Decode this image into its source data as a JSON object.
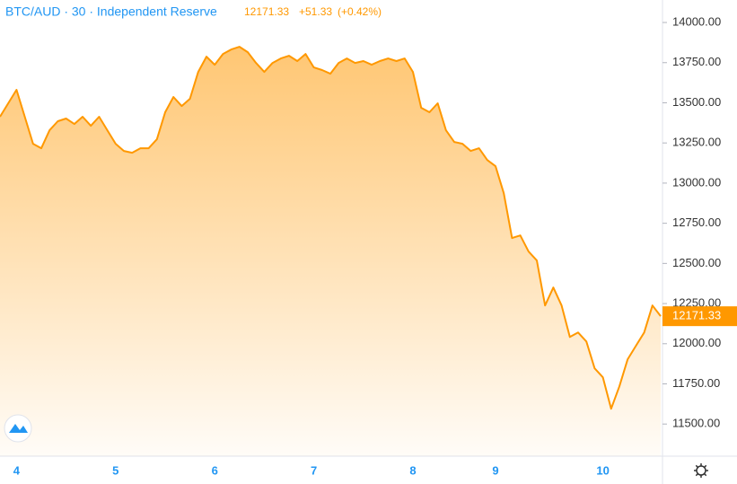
{
  "chart_data": {
    "type": "area",
    "title": "BTC/AUD · 30 · Independent Reserve",
    "change": "+51.33",
    "change_percent": "(+0.42%)",
    "color": "#ff9800",
    "categories": [
      null,
      null,
      "4",
      null,
      null,
      null,
      null,
      null,
      null,
      null,
      null,
      null,
      null,
      null,
      "5",
      null,
      null,
      null,
      null,
      null,
      null,
      null,
      null,
      null,
      null,
      null,
      "6",
      null,
      null,
      null,
      null,
      null,
      null,
      null,
      null,
      null,
      null,
      null,
      "7",
      null,
      null,
      null,
      null,
      null,
      null,
      null,
      null,
      null,
      null,
      null,
      "8",
      null,
      null,
      null,
      null,
      null,
      null,
      null,
      null,
      null,
      "9",
      null,
      null,
      null,
      null,
      null,
      null,
      null,
      null,
      null,
      null,
      null,
      null,
      "10",
      null,
      null,
      null,
      null,
      null,
      null,
      null
    ],
    "values": [
      13413,
      13497,
      13581,
      13413,
      13245,
      13217,
      13329,
      13385,
      13402,
      13368,
      13413,
      13357,
      13413,
      13329,
      13245,
      13200,
      13189,
      13217,
      13217,
      13273,
      13441,
      13536,
      13480,
      13525,
      13692,
      13787,
      13737,
      13804,
      13832,
      13849,
      13815,
      13748,
      13692,
      13748,
      13776,
      13793,
      13760,
      13804,
      13720,
      13704,
      13681,
      13748,
      13776,
      13748,
      13760,
      13737,
      13760,
      13776,
      13760,
      13776,
      13692,
      13469,
      13441,
      13497,
      13329,
      13256,
      13245,
      13200,
      13217,
      13144,
      13105,
      12937,
      12658,
      12674,
      12574,
      12518,
      12238,
      12350,
      12238,
      12042,
      12070,
      12014,
      11847,
      11791,
      11595,
      11735,
      11903,
      11987,
      12070,
      12238,
      12171.33
    ],
    "ylim": [
      11300,
      14140
    ],
    "yticks": [
      {
        "value": 11500,
        "label": "11500.00"
      },
      {
        "value": 11750,
        "label": "11750.00"
      },
      {
        "value": 12000,
        "label": "12000.00"
      },
      {
        "value": 12250,
        "label": "12250.00"
      },
      {
        "value": 12500,
        "label": "12500.00"
      },
      {
        "value": 12750,
        "label": "12750.00"
      },
      {
        "value": 13000,
        "label": "13000.00"
      },
      {
        "value": 13250,
        "label": "13250.00"
      },
      {
        "value": 13500,
        "label": "13500.00"
      },
      {
        "value": 13750,
        "label": "13750.00"
      },
      {
        "value": 14000,
        "label": "14000.00"
      }
    ],
    "grid": false
  }
}
